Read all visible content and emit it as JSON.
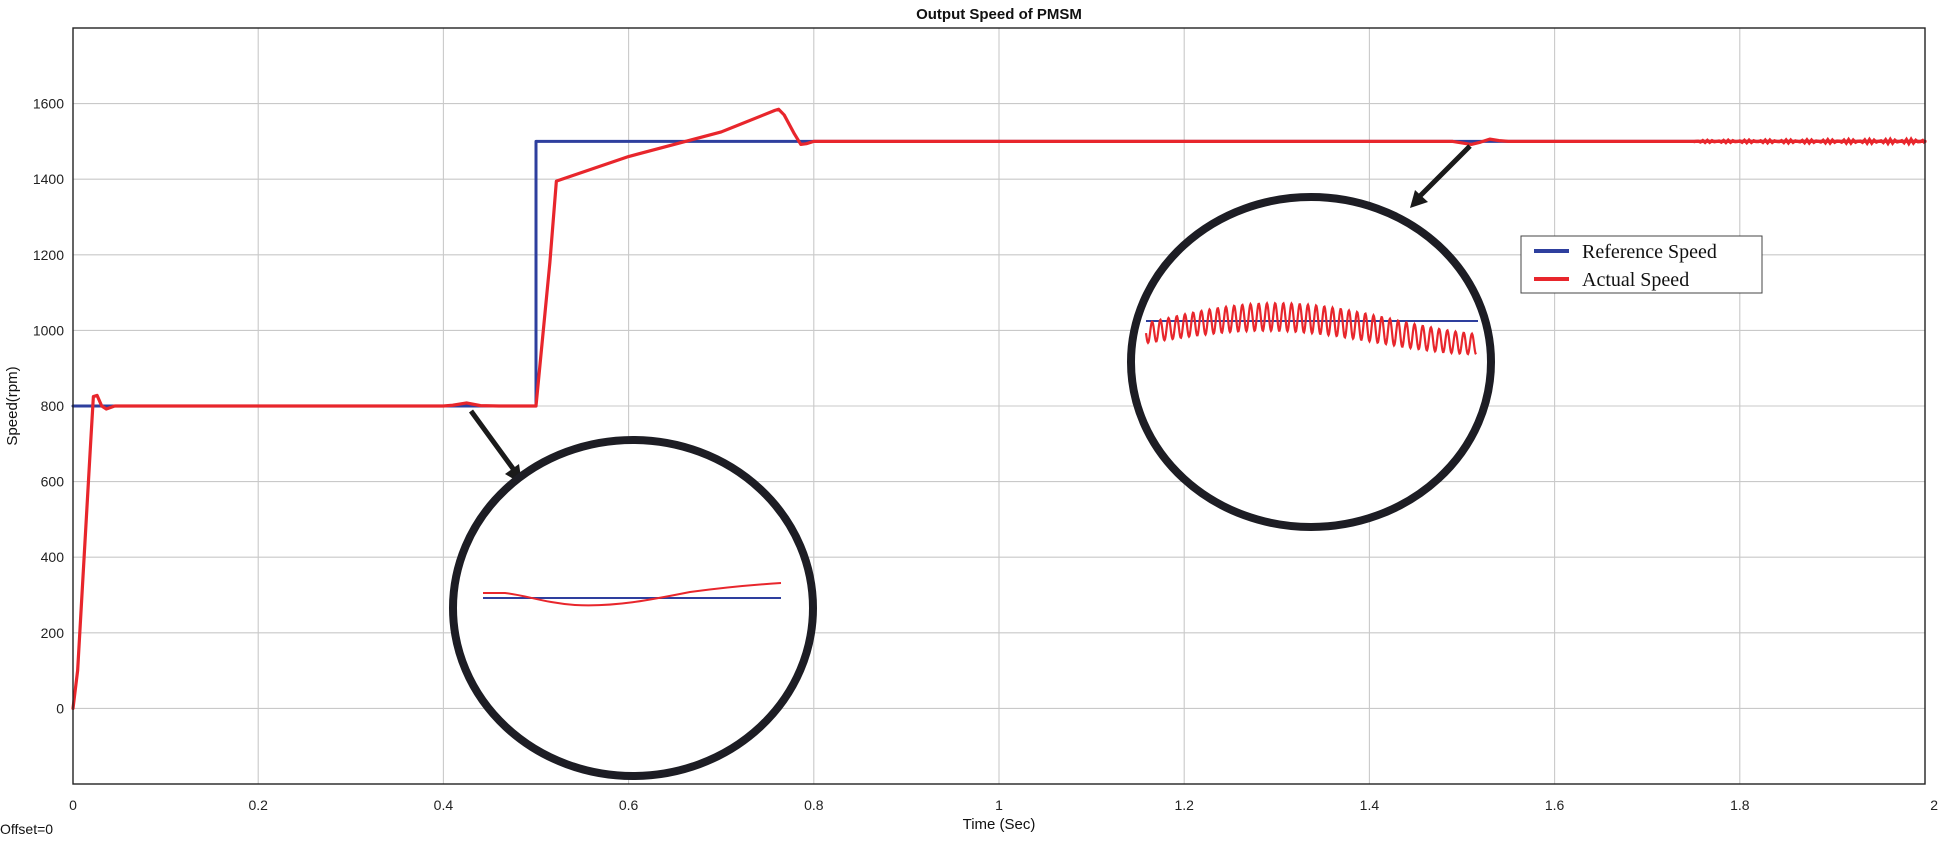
{
  "chart_data": {
    "type": "line",
    "title": "Output Speed of PMSM",
    "xlabel": "Time (Sec)",
    "ylabel": "Speed(rpm)",
    "xlim": [
      0,
      2
    ],
    "ylim": [
      -200,
      1800
    ],
    "x_ticks": [
      0,
      0.2,
      0.4,
      0.6,
      0.8,
      1,
      1.2,
      1.4,
      1.6,
      1.8,
      2
    ],
    "x_tick_labels": [
      "0",
      "0.2",
      "0.4",
      "0.6",
      "0.8",
      "1",
      "1.2",
      "1.4",
      "1.6",
      "1.8",
      "2"
    ],
    "y_ticks": [
      0,
      200,
      400,
      600,
      800,
      1000,
      1200,
      1400,
      1600
    ],
    "y_tick_labels": [
      "0",
      "200",
      "400",
      "600",
      "800",
      "1000",
      "1200",
      "1400",
      "1600"
    ],
    "grid": true,
    "legend_position": "right",
    "offset_label": "Offset=0",
    "series": [
      {
        "name": "Reference Speed",
        "color": "#2e3f9e",
        "points": [
          [
            0,
            800
          ],
          [
            0.5,
            800
          ],
          [
            0.5,
            1500
          ],
          [
            2,
            1500
          ]
        ]
      },
      {
        "name": "Actual Speed",
        "color": "#e8262c",
        "points": [
          [
            0,
            0
          ],
          [
            0.005,
            100
          ],
          [
            0.012,
            400
          ],
          [
            0.019,
            700
          ],
          [
            0.022,
            825
          ],
          [
            0.026,
            828
          ],
          [
            0.031,
            800
          ],
          [
            0.036,
            792
          ],
          [
            0.045,
            800
          ],
          [
            0.1,
            800
          ],
          [
            0.2,
            800
          ],
          [
            0.3,
            800
          ],
          [
            0.4,
            800
          ],
          [
            0.41,
            802
          ],
          [
            0.425,
            808
          ],
          [
            0.44,
            801
          ],
          [
            0.46,
            800
          ],
          [
            0.5,
            800
          ],
          [
            0.515,
            1180
          ],
          [
            0.522,
            1395
          ],
          [
            0.6,
            1460
          ],
          [
            0.7,
            1525
          ],
          [
            0.758,
            1582
          ],
          [
            0.762,
            1585
          ],
          [
            0.768,
            1570
          ],
          [
            0.779,
            1520
          ],
          [
            0.786,
            1492
          ],
          [
            0.792,
            1494
          ],
          [
            0.8,
            1500
          ],
          [
            1.0,
            1500
          ],
          [
            1.2,
            1500
          ],
          [
            1.4,
            1500
          ],
          [
            1.49,
            1500
          ],
          [
            1.5,
            1496
          ],
          [
            1.51,
            1492
          ],
          [
            1.52,
            1498
          ],
          [
            1.53,
            1506
          ],
          [
            1.54,
            1502
          ],
          [
            1.55,
            1500
          ],
          [
            2,
            1500
          ]
        ]
      }
    ]
  }
}
